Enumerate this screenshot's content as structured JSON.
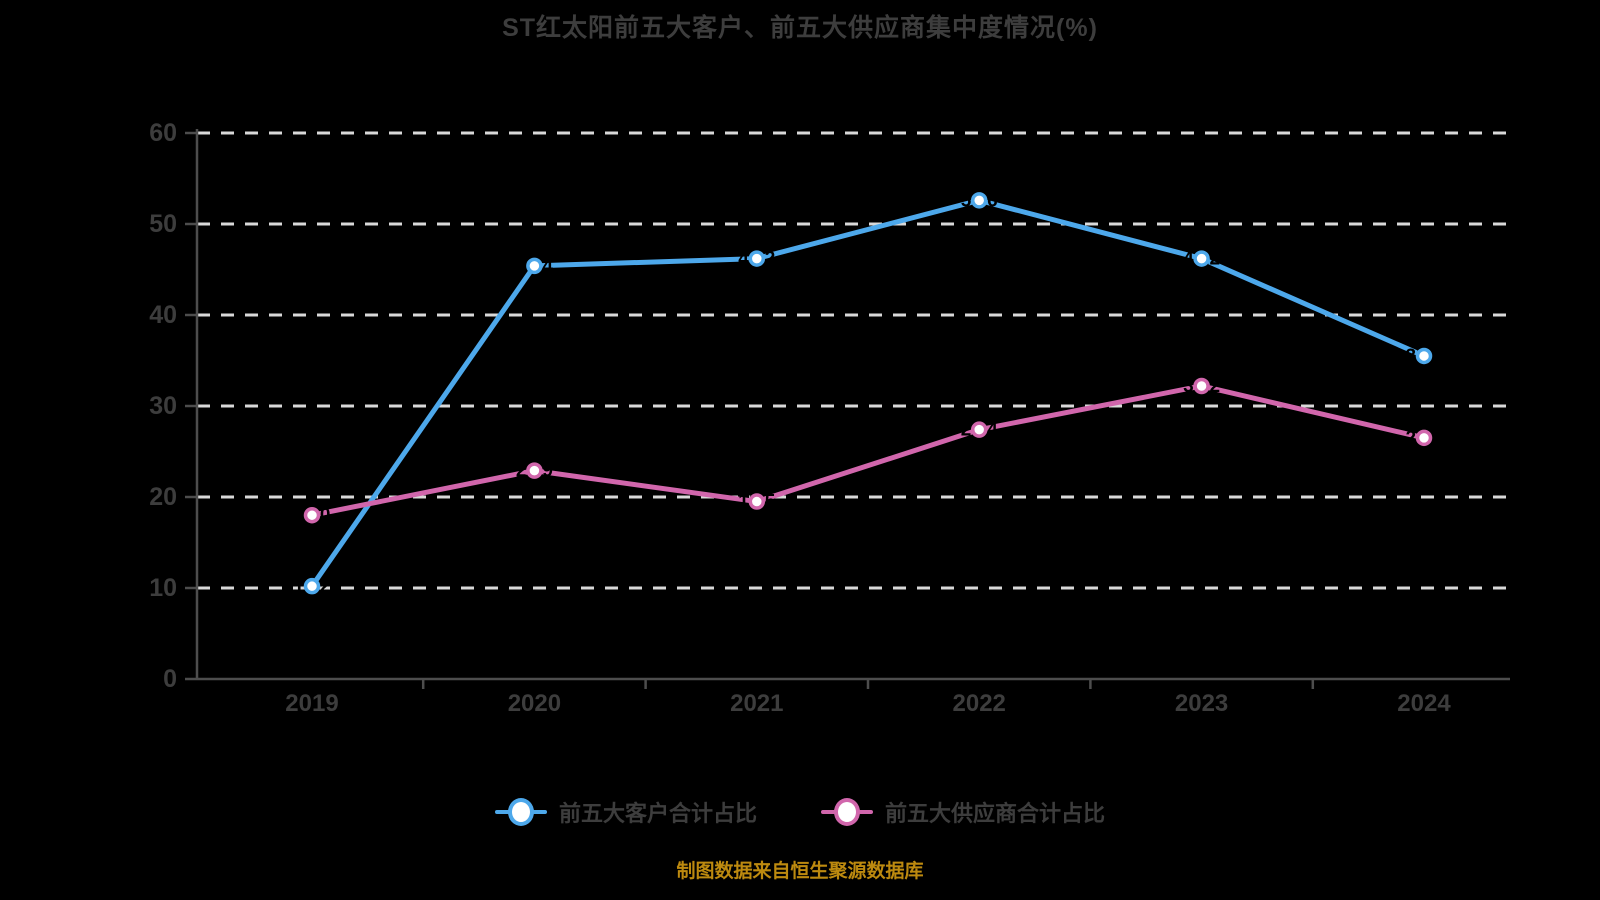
{
  "page": {
    "background_color": "#000000",
    "title_color": "#3d3d3d",
    "axis_color": "#4d4d4d",
    "gridline_color": "#d9d9d9",
    "tick_label_color": "#3d3d3d",
    "caption_color": "#bd8a0f"
  },
  "chart_data": {
    "type": "line",
    "title": "ST红太阳前五大客户、前五大供应商集中度情况(%)",
    "categories": [
      "2019",
      "2020",
      "2021",
      "2022",
      "2023",
      "2024"
    ],
    "series": [
      {
        "name": "前五大客户合计占比",
        "color": "#4DA8EB",
        "values": [
          10.2,
          45.4,
          46.2,
          52.6,
          46.2,
          35.5
        ]
      },
      {
        "name": "前五大供应商合计占比",
        "color": "#D166AC",
        "values": [
          18.0,
          22.9,
          19.5,
          27.4,
          32.2,
          26.5
        ]
      }
    ],
    "ylim": [
      0,
      60
    ],
    "yticks": [
      0,
      10,
      20,
      30,
      40,
      50,
      60
    ],
    "xlabel": "",
    "ylabel": "",
    "grid": "horizontal-dashed",
    "legend_position": "bottom",
    "marker": "circle-white-fill",
    "caption": "制图数据来自恒生聚源数据库"
  }
}
